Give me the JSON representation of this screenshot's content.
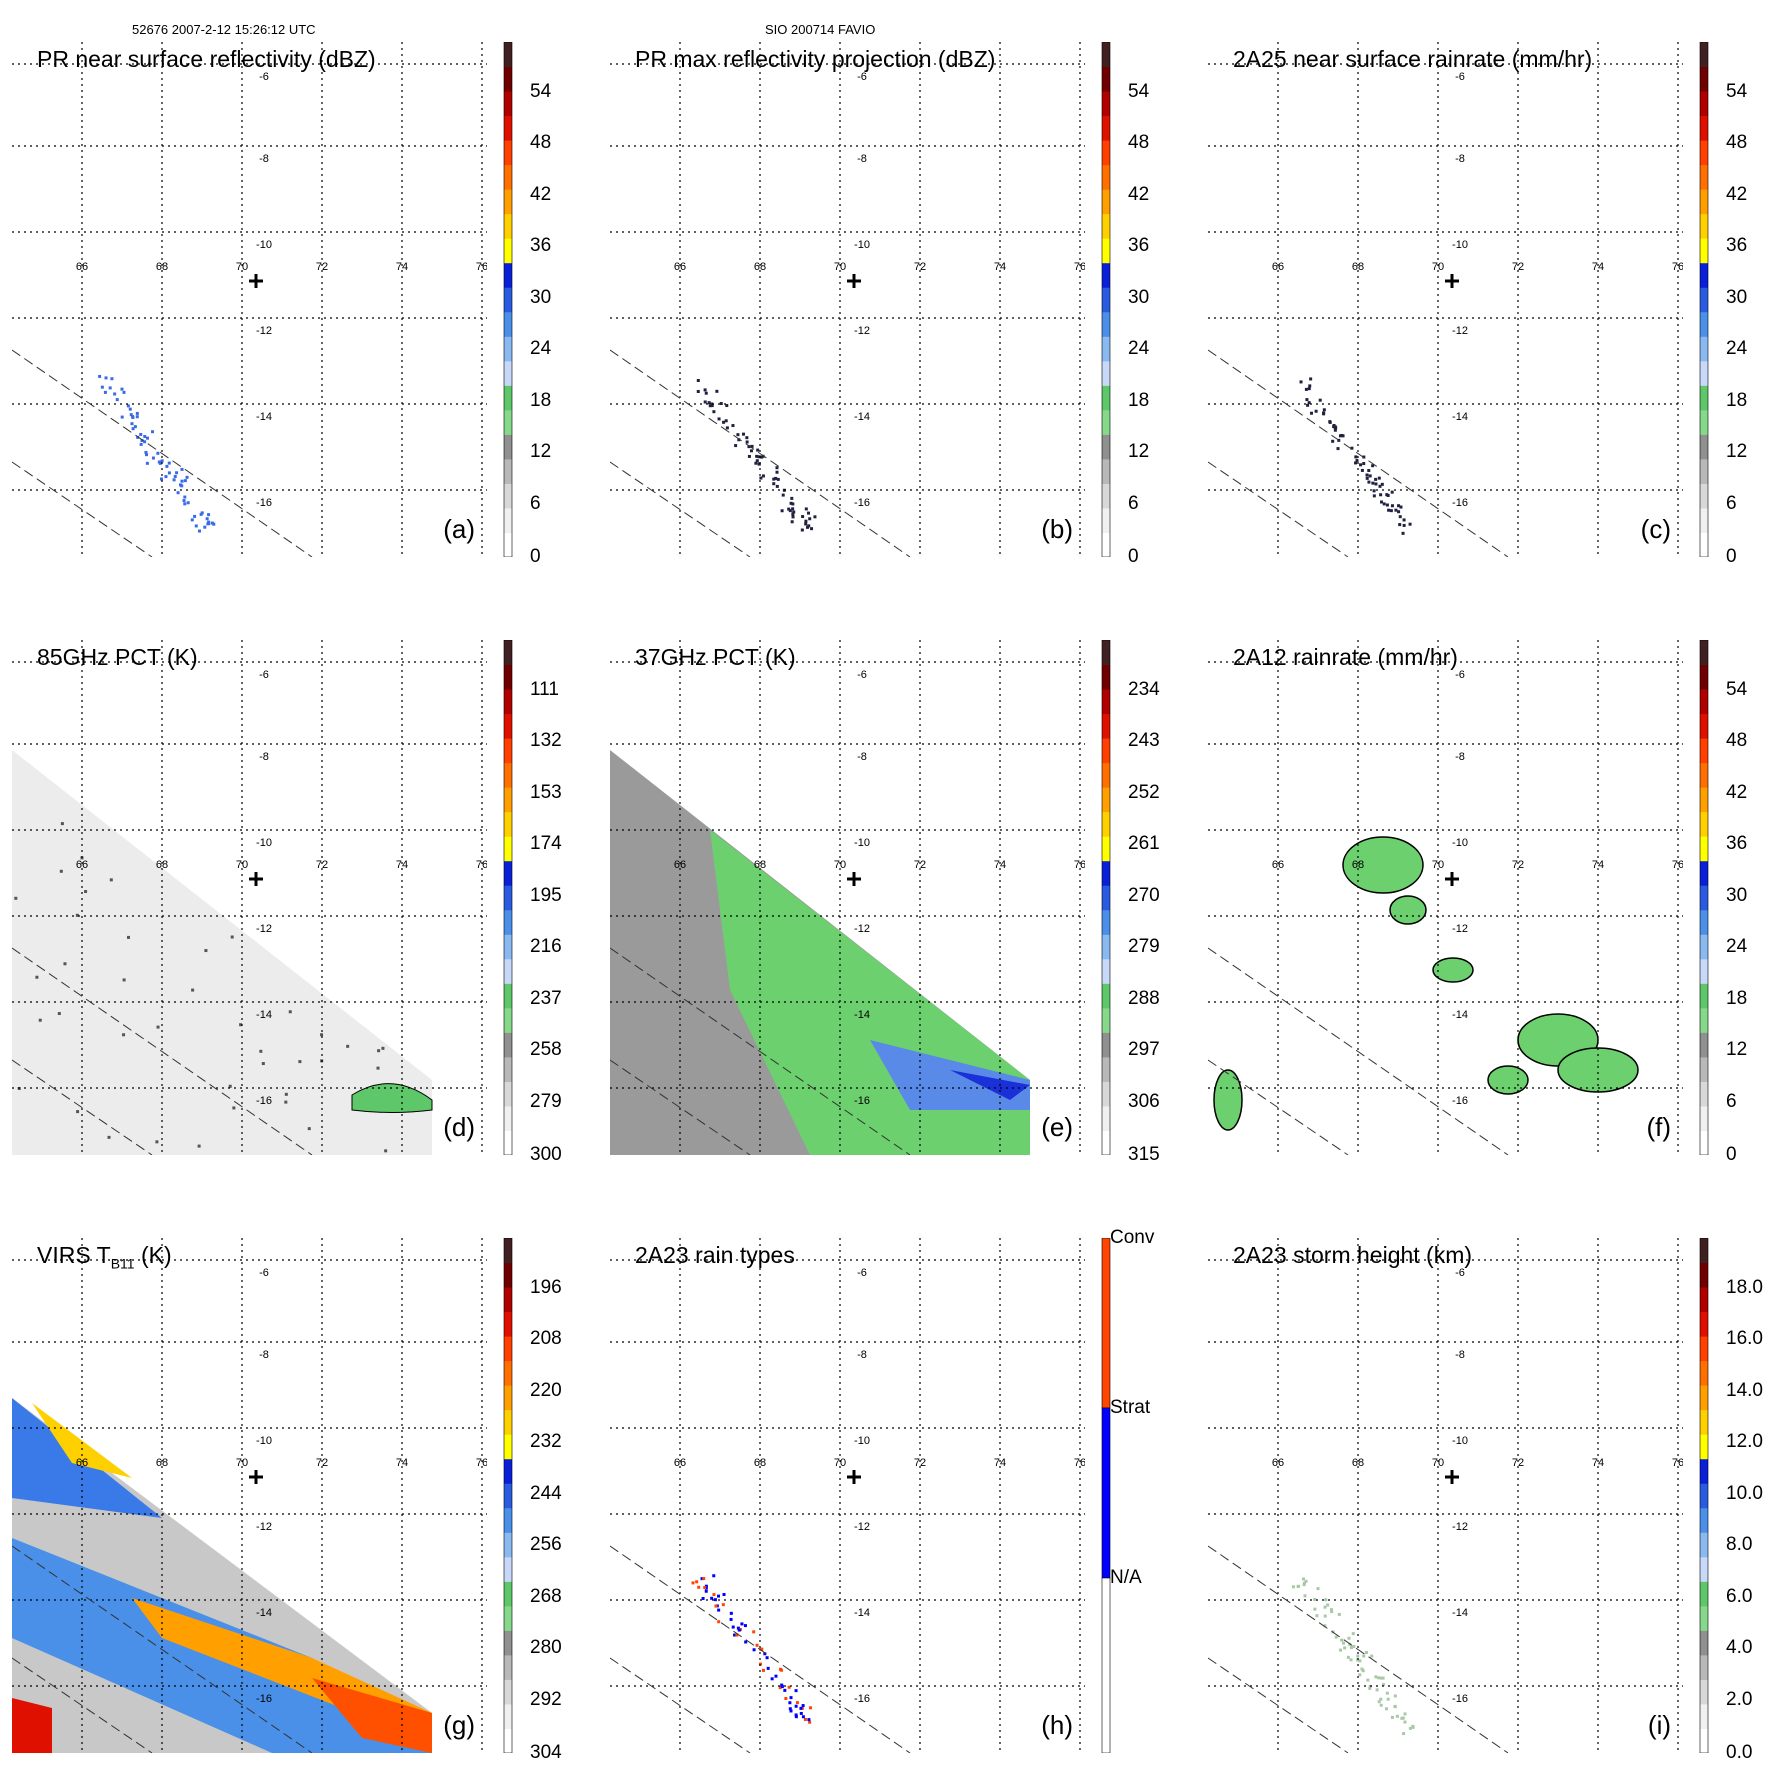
{
  "header": {
    "left": "52676 2007-2-12 15:26:12 UTC",
    "center": "SIO 200714 FAVIO"
  },
  "lon_ticks": [
    "66",
    "68",
    "70",
    "72",
    "74",
    "76"
  ],
  "lat_ticks": [
    "-6",
    "-8",
    "-10",
    "-12",
    "-14",
    "-16"
  ],
  "colors": {
    "scale": [
      "#ffffff",
      "#f0f0f0",
      "#d8d8d8",
      "#b8b8b8",
      "#909090",
      "#86d98a",
      "#5ec76a",
      "#c8d8f8",
      "#8ab8f0",
      "#4a90e8",
      "#2a5ae0",
      "#0a20d8",
      "#ffff00",
      "#ffd000",
      "#ffa000",
      "#ff7000",
      "#ff4000",
      "#e01000",
      "#b00000",
      "#700000",
      "#402020"
    ],
    "raintype": [
      "#ffffff",
      "#0000ff",
      "#ff4500"
    ]
  },
  "chart_data": [
    {
      "type": "heatmap",
      "label": "(a)",
      "title": "PR near surface reflectivity (dBZ)",
      "colorbar_ticks": [
        "54",
        "48",
        "42",
        "36",
        "30",
        "24",
        "18",
        "12",
        "6",
        "0"
      ]
    },
    {
      "type": "heatmap",
      "label": "(b)",
      "title": "PR max reflectivity projection (dBZ)",
      "colorbar_ticks": [
        "54",
        "48",
        "42",
        "36",
        "30",
        "24",
        "18",
        "12",
        "6",
        "0"
      ]
    },
    {
      "type": "heatmap",
      "label": "(c)",
      "title": "2A25 near surface rainrate (mm/hr)",
      "colorbar_ticks": [
        "54",
        "48",
        "42",
        "36",
        "30",
        "24",
        "18",
        "12",
        "6",
        "0"
      ]
    },
    {
      "type": "heatmap",
      "label": "(d)",
      "title": "85GHz PCT (K)",
      "colorbar_ticks": [
        "111",
        "132",
        "153",
        "174",
        "195",
        "216",
        "237",
        "258",
        "279",
        "300"
      ]
    },
    {
      "type": "heatmap",
      "label": "(e)",
      "title": "37GHz PCT (K)",
      "colorbar_ticks": [
        "234",
        "243",
        "252",
        "261",
        "270",
        "279",
        "288",
        "297",
        "306",
        "315"
      ]
    },
    {
      "type": "heatmap",
      "label": "(f)",
      "title": "2A12 rainrate (mm/hr)",
      "colorbar_ticks": [
        "54",
        "48",
        "42",
        "36",
        "30",
        "24",
        "18",
        "12",
        "6",
        "0"
      ]
    },
    {
      "type": "heatmap",
      "label": "(g)",
      "title": "VIRS T",
      "title_sub": "B11",
      "title_suffix": " (K)",
      "colorbar_ticks": [
        "196",
        "208",
        "220",
        "232",
        "244",
        "256",
        "268",
        "280",
        "292",
        "304"
      ]
    },
    {
      "type": "heatmap",
      "label": "(h)",
      "title": "2A23 rain types",
      "colorbar_ticks": [
        "Conv",
        "Strat",
        "N/A"
      ]
    },
    {
      "type": "heatmap",
      "label": "(i)",
      "title": "2A23 storm height (km)",
      "colorbar_ticks": [
        "18.0",
        "16.0",
        "14.0",
        "12.0",
        "10.0",
        "8.0",
        "6.0",
        "4.0",
        "2.0",
        "0.0"
      ]
    }
  ]
}
